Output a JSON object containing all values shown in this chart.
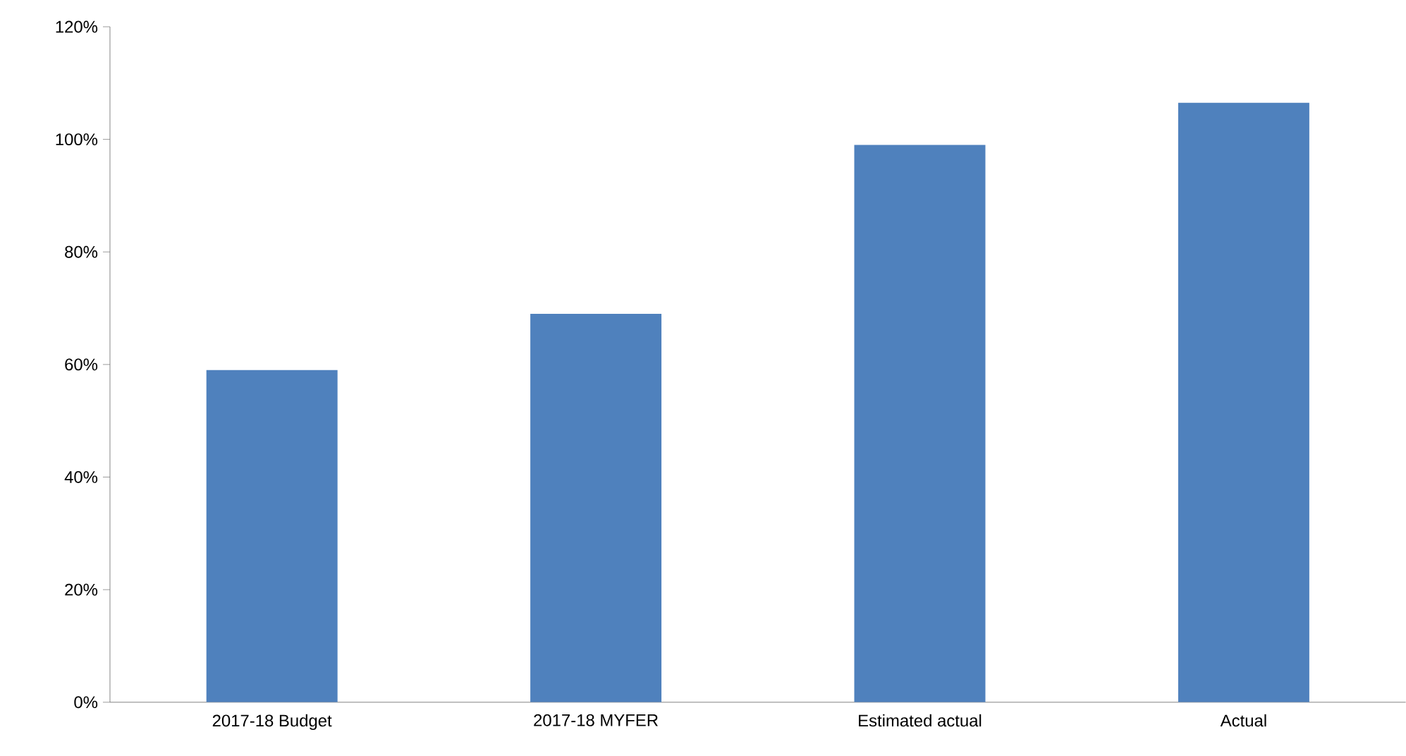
{
  "chart_data": {
    "type": "bar",
    "categories": [
      "2017-18 Budget",
      "2017-18 MYFER",
      "Estimated actual",
      "Actual"
    ],
    "values": [
      59,
      69,
      99,
      106.5
    ],
    "color": "#4f81bd",
    "ylim": [
      0,
      120
    ],
    "yticks": [
      {
        "value": 0,
        "label": "0%"
      },
      {
        "value": 20,
        "label": "20%"
      },
      {
        "value": 40,
        "label": "40%"
      },
      {
        "value": 60,
        "label": "60%"
      },
      {
        "value": 80,
        "label": "80%"
      },
      {
        "value": 100,
        "label": "100%"
      },
      {
        "value": 120,
        "label": "120%"
      }
    ],
    "grid": false
  }
}
